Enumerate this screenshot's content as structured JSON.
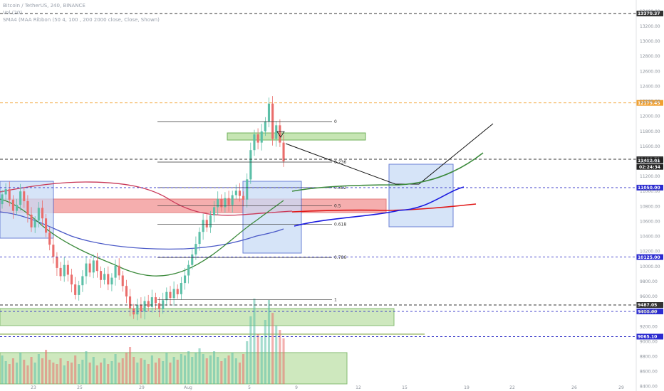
{
  "legend": {
    "title": "Bitcoin / TetherUS, 240, BINANCE",
    "volume": "Vol (20)",
    "indicator": "SMA4 (MAA Ribbon (50 4, 100 , 200 2000 close, Close, Shown)"
  },
  "colors": {
    "up": "#5bbfa7",
    "down": "#ea6d6b",
    "ma_red": "#c93858",
    "ma_green": "#3b8a3b",
    "ma_blue": "#4a59c7",
    "box_blue_fill": "#c9dbf6",
    "box_blue_stroke": "#3a57c9",
    "zone_green_fill": "#c6e5b3",
    "zone_green_stroke": "#6fb05a",
    "zone_red_fill": "#f4a6a6",
    "dashed_blue": "#3535c8",
    "dashed_black": "#333333",
    "dashed_orange": "#f0a030"
  },
  "chart_data": {
    "type": "candlestick",
    "symbol": "Bitcoin / TetherUS",
    "timeframe": "240",
    "exchange": "BINANCE",
    "y_ticks": [
      13400,
      13200,
      13000,
      12800,
      12600,
      12400,
      12200,
      12000,
      11800,
      11600,
      11400,
      11200,
      11000,
      10800,
      10600,
      10400,
      10200,
      10000,
      9800,
      9600,
      9400,
      9200,
      9000,
      8800,
      8600,
      8400
    ],
    "x_ticks": [
      "23",
      "25",
      "29",
      "Aug",
      "5",
      "9",
      "12",
      "15",
      "19",
      "22",
      "26",
      "29"
    ],
    "ylim": [
      8350,
      13550
    ],
    "price_levels": [
      {
        "price": 13370.37,
        "label": "13370.37",
        "style": "dashed-black"
      },
      {
        "price": 12179.45,
        "label": "12179.45",
        "style": "dashed-orange"
      },
      {
        "price": 11428.71,
        "label": "11428.71",
        "style": "dashed-black"
      },
      {
        "price": 11412.01,
        "label": "11412.01",
        "style": "price-black"
      },
      {
        "price": 11050.0,
        "label": "11050.00",
        "style": "dashed-blue"
      },
      {
        "price": 10125.0,
        "label": "10125.00",
        "style": "dashed-blue"
      },
      {
        "price": 9487.05,
        "label": "9487.05",
        "style": "dashed-black"
      },
      {
        "price": 9400.0,
        "label": "9400.00",
        "style": "dashed-blue"
      },
      {
        "price": 9065.1,
        "label": "9065.10",
        "style": "dashed-blue"
      }
    ],
    "countdown": "02:24:34",
    "fibonacci": [
      {
        "level": "0",
        "price": 11930
      },
      {
        "level": "0.236",
        "price": 11390
      },
      {
        "level": "0.382",
        "price": 11050
      },
      {
        "level": "0.5",
        "price": 10810
      },
      {
        "level": "0.618",
        "price": 10560
      },
      {
        "level": "0.786",
        "price": 10120
      },
      {
        "level": "1",
        "price": 9560
      }
    ],
    "candles": [
      [
        10830,
        10960
      ],
      [
        10960,
        11030
      ],
      [
        11030,
        10890
      ],
      [
        10890,
        10740
      ],
      [
        10740,
        10820
      ],
      [
        10820,
        11000
      ],
      [
        11000,
        10870
      ],
      [
        10870,
        10690
      ],
      [
        10690,
        10520
      ],
      [
        10520,
        10610
      ],
      [
        10610,
        10780
      ],
      [
        10780,
        10640
      ],
      [
        10640,
        10450
      ],
      [
        10450,
        10290
      ],
      [
        10290,
        10130
      ],
      [
        10130,
        9980
      ],
      [
        9980,
        9870
      ],
      [
        9870,
        10020
      ],
      [
        10020,
        9890
      ],
      [
        9890,
        9760
      ],
      [
        9760,
        9620
      ],
      [
        9620,
        9750
      ],
      [
        9750,
        9870
      ],
      [
        9870,
        10040
      ],
      [
        10040,
        9920
      ],
      [
        9920,
        10080
      ],
      [
        10080,
        9940
      ],
      [
        9940,
        9820
      ],
      [
        9820,
        9900
      ],
      [
        9900,
        9760
      ],
      [
        9760,
        9850
      ],
      [
        9850,
        10010
      ],
      [
        10010,
        9880
      ],
      [
        9880,
        9740
      ],
      [
        9740,
        9600
      ],
      [
        9600,
        9440
      ],
      [
        9440,
        9360
      ],
      [
        9360,
        9490
      ],
      [
        9490,
        9400
      ],
      [
        9400,
        9540
      ],
      [
        9540,
        9460
      ],
      [
        9460,
        9590
      ],
      [
        9590,
        9510
      ],
      [
        9510,
        9430
      ],
      [
        9430,
        9550
      ],
      [
        9550,
        9660
      ],
      [
        9660,
        9580
      ],
      [
        9580,
        9700
      ],
      [
        9700,
        9630
      ],
      [
        9630,
        9780
      ],
      [
        9780,
        9880
      ],
      [
        9880,
        10020
      ],
      [
        10020,
        10160
      ],
      [
        10160,
        10300
      ],
      [
        10300,
        10460
      ],
      [
        10460,
        10620
      ],
      [
        10620,
        10520
      ],
      [
        10520,
        10680
      ],
      [
        10680,
        10790
      ],
      [
        10790,
        10900
      ],
      [
        10900,
        10790
      ],
      [
        10790,
        10910
      ],
      [
        10910,
        10820
      ],
      [
        10820,
        10950
      ],
      [
        10950,
        11010
      ],
      [
        11010,
        10940
      ],
      [
        10940,
        10890
      ],
      [
        10890,
        11160
      ],
      [
        11160,
        11550
      ],
      [
        11550,
        11760
      ],
      [
        11760,
        11650
      ],
      [
        11650,
        11800
      ],
      [
        11800,
        11930
      ],
      [
        11930,
        12170
      ],
      [
        12170,
        11700
      ],
      [
        11700,
        11880
      ],
      [
        11880,
        11650
      ],
      [
        11650,
        11400
      ]
    ],
    "volumes": [
      40,
      32,
      28,
      36,
      30,
      44,
      34,
      26,
      38,
      30,
      42,
      36,
      48,
      34,
      30,
      28,
      36,
      26,
      32,
      30,
      40,
      28,
      34,
      46,
      30,
      38,
      26,
      30,
      36,
      28,
      32,
      42,
      30,
      36,
      44,
      52,
      38,
      30,
      36,
      34,
      28,
      40,
      30,
      36,
      32,
      44,
      30,
      38,
      34,
      42,
      40,
      46,
      38,
      44,
      50,
      42,
      36,
      40,
      46,
      38,
      32,
      36,
      40,
      44,
      36,
      30,
      42,
      60,
      95,
      120,
      70,
      66,
      90,
      118,
      100,
      82,
      76,
      64
    ]
  }
}
